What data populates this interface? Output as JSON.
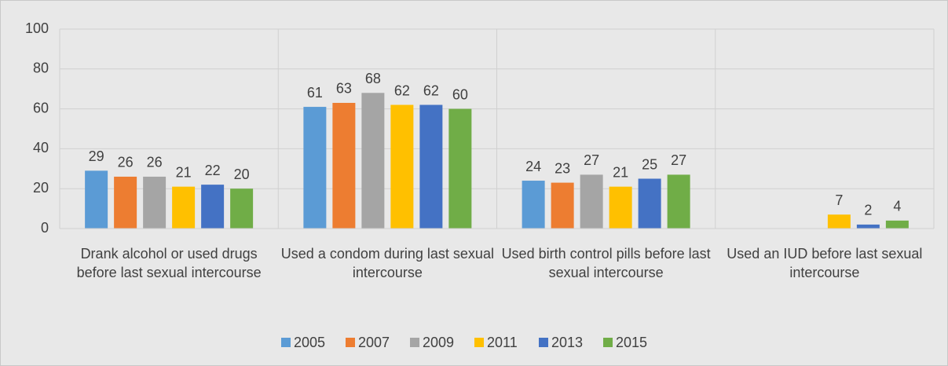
{
  "chart_data": {
    "type": "bar",
    "categories": [
      "Drank alcohol or used drugs before last sexual intercourse",
      "Used a condom during last sexual intercourse",
      "Used birth control pills before last sexual intercourse",
      "Used an IUD before last sexual intercourse"
    ],
    "series": [
      {
        "name": "2005",
        "color": "#5b9bd5",
        "values": [
          29,
          61,
          24,
          null
        ]
      },
      {
        "name": "2007",
        "color": "#ed7d31",
        "values": [
          26,
          63,
          23,
          null
        ]
      },
      {
        "name": "2009",
        "color": "#a5a5a5",
        "values": [
          26,
          68,
          27,
          null
        ]
      },
      {
        "name": "2011",
        "color": "#ffc000",
        "values": [
          21,
          62,
          21,
          7
        ]
      },
      {
        "name": "2013",
        "color": "#4472c4",
        "values": [
          22,
          62,
          25,
          2
        ]
      },
      {
        "name": "2015",
        "color": "#70ad47",
        "values": [
          20,
          60,
          27,
          4
        ]
      }
    ],
    "ylim": [
      0,
      100
    ],
    "yticks": [
      0,
      20,
      40,
      60,
      80,
      100
    ],
    "grid": true,
    "legend": "bottom"
  }
}
